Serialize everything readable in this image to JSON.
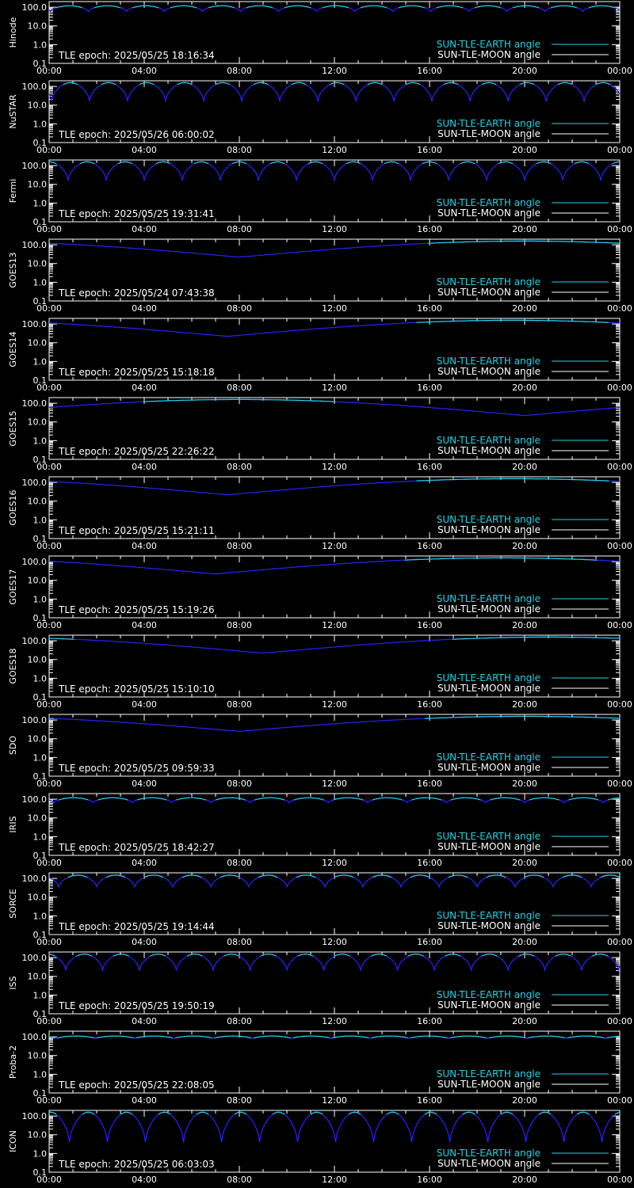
{
  "colors": {
    "background": "#000000",
    "axis": "#ffffff",
    "sun_earth": "#22d3e6",
    "sun_moon": "#ffffff",
    "curve_low": "#2424ff"
  },
  "x_tick_labels": [
    "00:00",
    "04:00",
    "08:00",
    "12:00",
    "16:00",
    "20:00",
    "00:00"
  ],
  "y_tick_labels": [
    "100.0",
    "10.0",
    "1.0",
    "0.1"
  ],
  "legend": {
    "earth": "SUN-TLE-EARTH angle",
    "moon": "SUN-TLE-MOON angle"
  },
  "chart_data": [
    {
      "type": "line",
      "name": "Hinode",
      "epoch_text": "TLE epoch: 2025/05/25 18:16:34",
      "xlim": [
        0,
        24
      ],
      "ylim": [
        0.1,
        200
      ],
      "yscale": "log",
      "x_ticks": [
        "00:00",
        "04:00",
        "08:00",
        "12:00",
        "16:00",
        "20:00",
        "00:00"
      ],
      "y_ticks": [
        100.0,
        10.0,
        1.0,
        0.1
      ],
      "curve": {
        "kind": "periodic",
        "period_h": 1.6,
        "phase_h": 0.05,
        "min": 60,
        "max": 120
      }
    },
    {
      "type": "line",
      "name": "NuSTAR",
      "epoch_text": "TLE epoch: 2025/05/26 06:00:02",
      "xlim": [
        0,
        24
      ],
      "ylim": [
        0.1,
        200
      ],
      "yscale": "log",
      "x_ticks": [
        "00:00",
        "04:00",
        "08:00",
        "12:00",
        "16:00",
        "20:00",
        "00:00"
      ],
      "y_ticks": [
        100.0,
        10.0,
        1.0,
        0.1
      ],
      "curve": {
        "kind": "periodic",
        "period_h": 1.6,
        "phase_h": 0.1,
        "min": 17,
        "max": 160
      }
    },
    {
      "type": "line",
      "name": "Fermi",
      "epoch_text": "TLE epoch: 2025/05/25 19:31:41",
      "xlim": [
        0,
        24
      ],
      "ylim": [
        0.1,
        200
      ],
      "yscale": "log",
      "x_ticks": [
        "00:00",
        "04:00",
        "08:00",
        "12:00",
        "16:00",
        "20:00",
        "00:00"
      ],
      "y_ticks": [
        100.0,
        10.0,
        1.0,
        0.1
      ],
      "curve": {
        "kind": "periodic",
        "period_h": 1.6,
        "phase_h": 0.8,
        "min": 17,
        "max": 160
      }
    },
    {
      "type": "line",
      "name": "GOES13",
      "epoch_text": "TLE epoch: 2025/05/24 07:43:38",
      "xlim": [
        0,
        24
      ],
      "ylim": [
        0.1,
        200
      ],
      "yscale": "log",
      "x_ticks": [
        "00:00",
        "04:00",
        "08:00",
        "12:00",
        "16:00",
        "20:00",
        "00:00"
      ],
      "y_ticks": [
        100.0,
        10.0,
        1.0,
        0.1
      ],
      "curve": {
        "kind": "daily",
        "min_h": 8.0,
        "min": 22,
        "max": 158
      }
    },
    {
      "type": "line",
      "name": "GOES14",
      "epoch_text": "TLE epoch: 2025/05/25 15:18:18",
      "xlim": [
        0,
        24
      ],
      "ylim": [
        0.1,
        200
      ],
      "yscale": "log",
      "x_ticks": [
        "00:00",
        "04:00",
        "08:00",
        "12:00",
        "16:00",
        "20:00",
        "00:00"
      ],
      "y_ticks": [
        100.0,
        10.0,
        1.0,
        0.1
      ],
      "curve": {
        "kind": "daily",
        "min_h": 7.5,
        "min": 22,
        "max": 158
      }
    },
    {
      "type": "line",
      "name": "GOES15",
      "epoch_text": "TLE epoch: 2025/05/25 22:26:22",
      "xlim": [
        0,
        24
      ],
      "ylim": [
        0.1,
        200
      ],
      "yscale": "log",
      "x_ticks": [
        "00:00",
        "04:00",
        "08:00",
        "12:00",
        "16:00",
        "20:00",
        "00:00"
      ],
      "y_ticks": [
        100.0,
        10.0,
        1.0,
        0.1
      ],
      "curve": {
        "kind": "daily",
        "min_h": 20.0,
        "min": 22,
        "max": 158
      }
    },
    {
      "type": "line",
      "name": "GOES16",
      "epoch_text": "TLE epoch: 2025/05/25 15:21:11",
      "xlim": [
        0,
        24
      ],
      "ylim": [
        0.1,
        200
      ],
      "yscale": "log",
      "x_ticks": [
        "00:00",
        "04:00",
        "08:00",
        "12:00",
        "16:00",
        "20:00",
        "00:00"
      ],
      "y_ticks": [
        100.0,
        10.0,
        1.0,
        0.1
      ],
      "curve": {
        "kind": "daily",
        "min_h": 7.5,
        "min": 22,
        "max": 158
      }
    },
    {
      "type": "line",
      "name": "GOES17",
      "epoch_text": "TLE epoch: 2025/05/25 15:19:26",
      "xlim": [
        0,
        24
      ],
      "ylim": [
        0.1,
        200
      ],
      "yscale": "log",
      "x_ticks": [
        "00:00",
        "04:00",
        "08:00",
        "12:00",
        "16:00",
        "20:00",
        "00:00"
      ],
      "y_ticks": [
        100.0,
        10.0,
        1.0,
        0.1
      ],
      "curve": {
        "kind": "daily",
        "min_h": 7.0,
        "min": 22,
        "max": 158
      }
    },
    {
      "type": "line",
      "name": "GOES18",
      "epoch_text": "TLE epoch: 2025/05/25 15:10:10",
      "xlim": [
        0,
        24
      ],
      "ylim": [
        0.1,
        200
      ],
      "yscale": "log",
      "x_ticks": [
        "00:00",
        "04:00",
        "08:00",
        "12:00",
        "16:00",
        "20:00",
        "00:00"
      ],
      "y_ticks": [
        100.0,
        10.0,
        1.0,
        0.1
      ],
      "curve": {
        "kind": "daily",
        "min_h": 9.0,
        "min": 22,
        "max": 158
      }
    },
    {
      "type": "line",
      "name": "SDO",
      "epoch_text": "TLE epoch: 2025/05/25 09:59:33",
      "xlim": [
        0,
        24
      ],
      "ylim": [
        0.1,
        200
      ],
      "yscale": "log",
      "x_ticks": [
        "00:00",
        "04:00",
        "08:00",
        "12:00",
        "16:00",
        "20:00",
        "00:00"
      ],
      "y_ticks": [
        100.0,
        10.0,
        1.0,
        0.1
      ],
      "curve": {
        "kind": "daily",
        "min_h": 8.0,
        "min": 25,
        "max": 158
      }
    },
    {
      "type": "line",
      "name": "IRIS",
      "epoch_text": "TLE epoch: 2025/05/25 18:42:27",
      "xlim": [
        0,
        24
      ],
      "ylim": [
        0.1,
        200
      ],
      "yscale": "log",
      "x_ticks": [
        "00:00",
        "04:00",
        "08:00",
        "12:00",
        "16:00",
        "20:00",
        "00:00"
      ],
      "y_ticks": [
        100.0,
        10.0,
        1.0,
        0.1
      ],
      "curve": {
        "kind": "periodic",
        "period_h": 1.65,
        "phase_h": 0.2,
        "min": 65,
        "max": 120
      }
    },
    {
      "type": "line",
      "name": "SORCE",
      "epoch_text": "TLE epoch: 2025/05/25 19:14:44",
      "xlim": [
        0,
        24
      ],
      "ylim": [
        0.1,
        200
      ],
      "yscale": "log",
      "x_ticks": [
        "00:00",
        "04:00",
        "08:00",
        "12:00",
        "16:00",
        "20:00",
        "00:00"
      ],
      "y_ticks": [
        100.0,
        10.0,
        1.0,
        0.1
      ],
      "curve": {
        "kind": "periodic",
        "period_h": 1.6,
        "phase_h": 0.4,
        "min": 35,
        "max": 150
      }
    },
    {
      "type": "line",
      "name": "ISS",
      "epoch_text": "TLE epoch: 2025/05/25 19:50:19",
      "xlim": [
        0,
        24
      ],
      "ylim": [
        0.1,
        200
      ],
      "yscale": "log",
      "x_ticks": [
        "00:00",
        "04:00",
        "08:00",
        "12:00",
        "16:00",
        "20:00",
        "00:00"
      ],
      "y_ticks": [
        100.0,
        10.0,
        1.0,
        0.1
      ],
      "curve": {
        "kind": "periodic",
        "period_h": 1.55,
        "phase_h": 0.7,
        "min": 22,
        "max": 155
      }
    },
    {
      "type": "line",
      "name": "Proba-2",
      "epoch_text": "TLE epoch: 2025/05/25 22:08:05",
      "xlim": [
        0,
        24
      ],
      "ylim": [
        0.1,
        200
      ],
      "yscale": "log",
      "x_ticks": [
        "00:00",
        "04:00",
        "08:00",
        "12:00",
        "16:00",
        "20:00",
        "00:00"
      ],
      "y_ticks": [
        100.0,
        10.0,
        1.0,
        0.1
      ],
      "curve": {
        "kind": "periodic",
        "period_h": 1.65,
        "phase_h": 0.3,
        "min": 80,
        "max": 110
      }
    },
    {
      "type": "line",
      "name": "ICON",
      "epoch_text": "TLE epoch: 2025/05/25 06:03:03",
      "xlim": [
        0,
        24
      ],
      "ylim": [
        0.1,
        200
      ],
      "yscale": "log",
      "x_ticks": [
        "00:00",
        "04:00",
        "08:00",
        "12:00",
        "16:00",
        "20:00",
        "00:00"
      ],
      "y_ticks": [
        100.0,
        10.0,
        1.0,
        0.1
      ],
      "curve": {
        "kind": "periodic",
        "period_h": 1.6,
        "phase_h": 0.85,
        "min": 4,
        "max": 160
      }
    }
  ]
}
